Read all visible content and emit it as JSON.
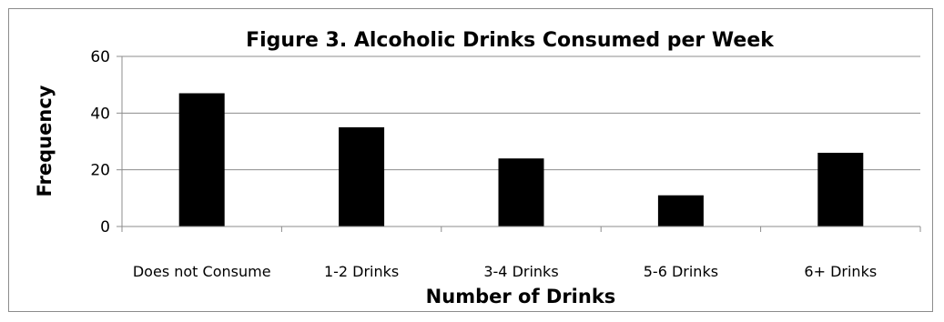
{
  "chart_data": {
    "type": "bar",
    "title": "Figure 3. Alcoholic Drinks Consumed per Week",
    "xlabel": "Number of Drinks",
    "ylabel": "Frequency",
    "categories": [
      "Does not Consume",
      "1-2 Drinks",
      "3-4 Drinks",
      "5-6 Drinks",
      "6+ Drinks"
    ],
    "values": [
      47,
      35,
      24,
      11,
      26
    ],
    "ylim": [
      0,
      60
    ],
    "yticks": [
      0,
      20,
      40,
      60
    ],
    "grid": true,
    "legend": "none",
    "colors": {
      "bar": "#000000",
      "grid": "#8c8c8c",
      "axis": "#8c8c8c",
      "border": "#8c8c8c"
    }
  }
}
